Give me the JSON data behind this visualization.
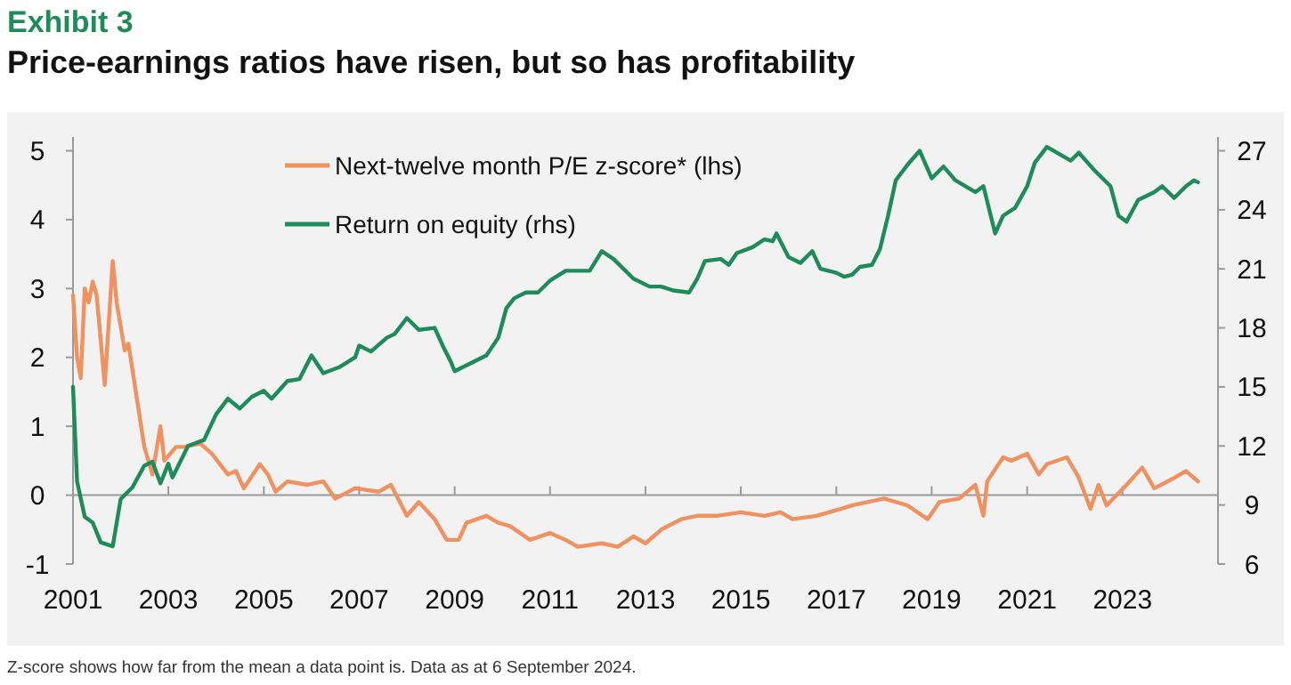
{
  "chart_data": {
    "type": "line",
    "title": "Price-earnings ratios have risen, but so has profitability",
    "annotations": [
      "Exhibit 3",
      "Z-score shows how far from the mean a data point is. Data as at 6 September 2024."
    ],
    "xlim": [
      "2001-01",
      "2025-01"
    ],
    "xticks": [
      "2001",
      "2003",
      "2005",
      "2007",
      "2009",
      "2011",
      "2013",
      "2015",
      "2017",
      "2019",
      "2021",
      "2023"
    ],
    "ylim": [
      -1,
      5.2
    ],
    "yticks": [
      -1,
      0,
      1,
      2,
      3,
      4,
      5
    ],
    "y2lim": [
      6,
      27.7
    ],
    "y2ticks": [
      6,
      9,
      12,
      15,
      18,
      21,
      24,
      27
    ],
    "legend": "top left",
    "marker": "none",
    "line_style": "solid",
    "series": [
      {
        "name": "Next-twelve month P/E z-score* (lhs)",
        "color": "#f0915f",
        "x": [
          "2001-01",
          "2001-02",
          "2001-03",
          "2001-04",
          "2001-05",
          "2001-06",
          "2001-07",
          "2001-09",
          "2001-11",
          "2001-12",
          "2002-02",
          "2002-03",
          "2002-07",
          "2002-09",
          "2002-11",
          "2002-12",
          "2003-03",
          "2003-05",
          "2003-09",
          "2003-12",
          "2004-04",
          "2004-06",
          "2004-08",
          "2004-12",
          "2005-02",
          "2005-04",
          "2005-07",
          "2005-12",
          "2006-04",
          "2006-07",
          "2006-12",
          "2007-06",
          "2007-09",
          "2008-01",
          "2008-04",
          "2008-08",
          "2008-11",
          "2009-02",
          "2009-04",
          "2009-09",
          "2009-12",
          "2010-03",
          "2010-08",
          "2011-01",
          "2011-05",
          "2011-08",
          "2012-02",
          "2012-06",
          "2012-10",
          "2013-01",
          "2013-05",
          "2013-10",
          "2014-02",
          "2014-07",
          "2015-01",
          "2015-07",
          "2015-11",
          "2016-02",
          "2016-08",
          "2017-02",
          "2017-05",
          "2018-01",
          "2018-07",
          "2018-12",
          "2019-03",
          "2019-08",
          "2019-12",
          "2020-02",
          "2020-03",
          "2020-07",
          "2020-09",
          "2021-01",
          "2021-04",
          "2021-06",
          "2021-11",
          "2022-02",
          "2022-05",
          "2022-07",
          "2022-09",
          "2023-02",
          "2023-06",
          "2023-09",
          "2024-02",
          "2024-05",
          "2024-08"
        ],
        "values": [
          2.9,
          2.0,
          1.7,
          3.0,
          2.8,
          3.1,
          2.9,
          1.6,
          3.4,
          2.8,
          2.1,
          2.2,
          0.7,
          0.3,
          1.0,
          0.5,
          0.7,
          0.7,
          0.75,
          0.6,
          0.3,
          0.35,
          0.1,
          0.45,
          0.3,
          0.05,
          0.2,
          0.15,
          0.2,
          -0.05,
          0.1,
          0.05,
          0.15,
          -0.3,
          -0.1,
          -0.35,
          -0.65,
          -0.65,
          -0.4,
          -0.3,
          -0.4,
          -0.45,
          -0.65,
          -0.55,
          -0.65,
          -0.75,
          -0.7,
          -0.75,
          -0.6,
          -0.7,
          -0.5,
          -0.35,
          -0.3,
          -0.3,
          -0.25,
          -0.3,
          -0.25,
          -0.35,
          -0.3,
          -0.2,
          -0.15,
          -0.05,
          -0.15,
          -0.35,
          -0.1,
          -0.05,
          0.15,
          -0.3,
          0.2,
          0.55,
          0.5,
          0.6,
          0.3,
          0.45,
          0.55,
          0.25,
          -0.2,
          0.15,
          -0.15,
          0.15,
          0.4,
          0.1,
          0.25,
          0.35,
          0.2
        ]
      },
      {
        "name": "Return on equity (rhs)",
        "color": "#1e8c5a",
        "axis": "y2",
        "x": [
          "2001-01",
          "2001-02",
          "2001-04",
          "2001-06",
          "2001-08",
          "2001-11",
          "2002-01",
          "2002-04",
          "2002-07",
          "2002-09",
          "2002-11",
          "2003-01",
          "2003-02",
          "2003-06",
          "2003-10",
          "2004-01",
          "2004-04",
          "2004-07",
          "2004-10",
          "2005-01",
          "2005-03",
          "2005-07",
          "2005-10",
          "2006-01",
          "2006-04",
          "2006-08",
          "2006-12",
          "2007-01",
          "2007-04",
          "2007-08",
          "2007-10",
          "2008-01",
          "2008-04",
          "2008-08",
          "2008-10",
          "2008-12",
          "2009-01",
          "2009-06",
          "2009-09",
          "2009-12",
          "2010-02",
          "2010-04",
          "2010-07",
          "2010-10",
          "2011-01",
          "2011-05",
          "2011-08",
          "2011-11",
          "2012-02",
          "2012-05",
          "2012-10",
          "2013-02",
          "2013-05",
          "2013-08",
          "2013-12",
          "2014-02",
          "2014-04",
          "2014-08",
          "2014-10",
          "2014-12",
          "2015-04",
          "2015-07",
          "2015-09",
          "2015-10",
          "2016-01",
          "2016-04",
          "2016-07",
          "2016-09",
          "2017-01",
          "2017-03",
          "2017-05",
          "2017-07",
          "2017-10",
          "2017-12",
          "2018-02",
          "2018-04",
          "2018-07",
          "2018-10",
          "2019-01",
          "2019-04",
          "2019-07",
          "2019-12",
          "2020-02",
          "2020-05",
          "2020-07",
          "2020-10",
          "2021-01",
          "2021-03",
          "2021-06",
          "2021-12",
          "2022-02",
          "2022-06",
          "2022-10",
          "2022-12",
          "2023-02",
          "2023-05",
          "2023-09",
          "2023-11",
          "2024-02",
          "2024-05",
          "2024-07",
          "2024-08"
        ],
        "values": [
          15.0,
          10.2,
          8.4,
          8.1,
          7.1,
          6.9,
          9.3,
          9.9,
          11.0,
          11.2,
          10.1,
          11.1,
          10.4,
          12.0,
          12.3,
          13.6,
          14.4,
          13.9,
          14.5,
          14.8,
          14.4,
          15.3,
          15.4,
          16.6,
          15.7,
          16.0,
          16.5,
          17.1,
          16.8,
          17.5,
          17.7,
          18.5,
          17.9,
          18.0,
          17.1,
          16.3,
          15.8,
          16.3,
          16.6,
          17.5,
          19.0,
          19.5,
          19.8,
          19.8,
          20.4,
          20.9,
          20.9,
          20.9,
          21.9,
          21.5,
          20.5,
          20.1,
          20.1,
          19.9,
          19.8,
          20.5,
          21.4,
          21.5,
          21.2,
          21.8,
          22.1,
          22.5,
          22.4,
          22.8,
          21.6,
          21.3,
          21.9,
          21.0,
          20.8,
          20.6,
          20.7,
          21.1,
          21.2,
          22.0,
          23.7,
          25.5,
          26.3,
          27.0,
          25.6,
          26.2,
          25.5,
          24.9,
          25.2,
          22.8,
          23.7,
          24.1,
          25.2,
          26.4,
          27.2,
          26.5,
          26.9,
          26.0,
          25.2,
          23.7,
          23.4,
          24.5,
          24.9,
          25.2,
          24.6,
          25.2,
          25.5,
          25.4
        ]
      }
    ]
  }
}
